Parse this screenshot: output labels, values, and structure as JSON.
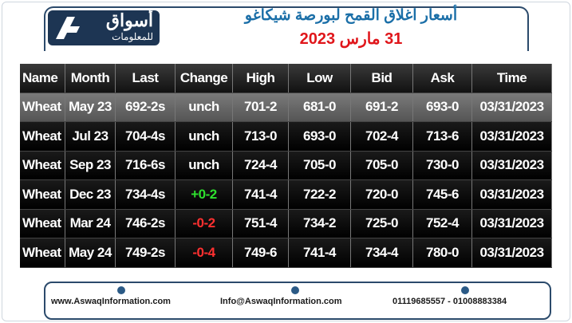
{
  "header": {
    "logo": {
      "name": "أسواق",
      "sub": "للمعلومات"
    },
    "title": "أسعار اغلاق القمح لبورصة شيكاغو",
    "date": "31 مارس 2023"
  },
  "table": {
    "columns": [
      "Name",
      "Month",
      "Last",
      "Change",
      "High",
      "Low",
      "Bid",
      "Ask",
      "Time"
    ],
    "rows": [
      [
        "Wheat",
        "May 23",
        "692-2s",
        "unch",
        "701-2",
        "681-0",
        "691-2",
        "693-0",
        "03/31/2023"
      ],
      [
        "Wheat",
        "Jul 23",
        "704-4s",
        "unch",
        "713-0",
        "693-0",
        "702-4",
        "713-6",
        "03/31/2023"
      ],
      [
        "Wheat",
        "Sep 23",
        "716-6s",
        "unch",
        "724-4",
        "705-0",
        "705-0",
        "730-0",
        "03/31/2023"
      ],
      [
        "Wheat",
        "Dec 23",
        "734-4s",
        "+0-2",
        "741-4",
        "722-2",
        "720-0",
        "745-6",
        "03/31/2023"
      ],
      [
        "Wheat",
        "Mar 24",
        "746-2s",
        "-0-2",
        "751-4",
        "734-2",
        "725-0",
        "752-4",
        "03/31/2023"
      ],
      [
        "Wheat",
        "May 24",
        "749-2s",
        "-0-4",
        "749-6",
        "741-4",
        "734-4",
        "780-0",
        "03/31/2023"
      ]
    ]
  },
  "footer": {
    "website": "www.AswaqInformation.com",
    "email": "Info@AswaqInformation.com",
    "phone": "01119685557 - 01008883384"
  }
}
